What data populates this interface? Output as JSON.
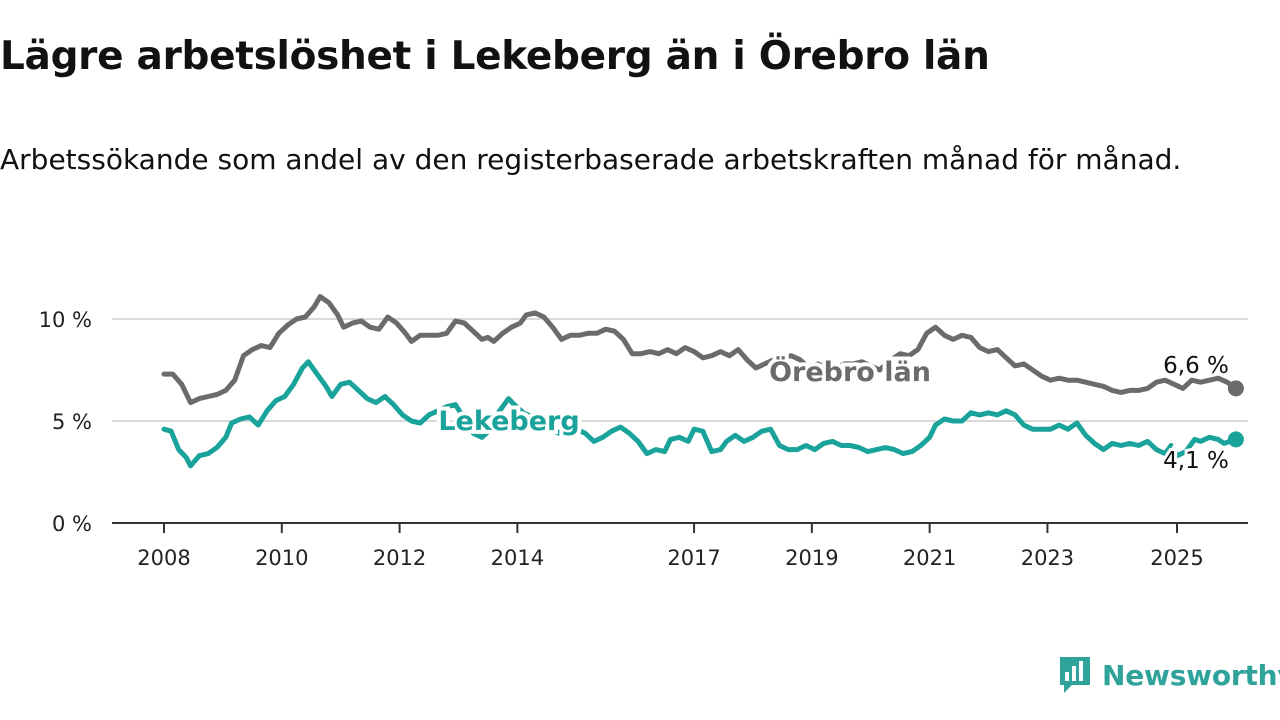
{
  "title": "Lägre arbetslöshet i Lekeberg än i Örebro län",
  "subtitle": "Arbetssökande som andel av den registerbaserade arbetskraften månad för månad.",
  "brand": {
    "name": "Newsworthy",
    "icon": "bar-chart-icon",
    "color": "#2fa39a"
  },
  "chart_data": {
    "type": "line",
    "xlabel": "",
    "ylabel": "",
    "xlim": [
      2007.6,
      2026.4
    ],
    "ylim": [
      0,
      10
    ],
    "x_ticks": [
      "2008",
      "2010",
      "2012",
      "2014",
      "2017",
      "2019",
      "2021",
      "2023",
      "2025"
    ],
    "y_ticks": [
      {
        "value": 0,
        "label": "0 %"
      },
      {
        "value": 5,
        "label": "5 %"
      },
      {
        "value": 10,
        "label": "10 %"
      }
    ],
    "grid": true,
    "series": [
      {
        "name": "Örebro län",
        "color": "#6b6b6e",
        "end_label": "6,6 %",
        "points": [
          [
            2008.0,
            7.3
          ],
          [
            2008.15,
            7.3
          ],
          [
            2008.3,
            6.8
          ],
          [
            2008.45,
            5.9
          ],
          [
            2008.6,
            6.1
          ],
          [
            2008.75,
            6.2
          ],
          [
            2008.9,
            6.3
          ],
          [
            2009.05,
            6.5
          ],
          [
            2009.2,
            7.0
          ],
          [
            2009.35,
            8.2
          ],
          [
            2009.5,
            8.5
          ],
          [
            2009.65,
            8.7
          ],
          [
            2009.8,
            8.6
          ],
          [
            2009.95,
            9.3
          ],
          [
            2010.1,
            9.7
          ],
          [
            2010.25,
            10.0
          ],
          [
            2010.4,
            10.1
          ],
          [
            2010.55,
            10.6
          ],
          [
            2010.65,
            11.1
          ],
          [
            2010.8,
            10.8
          ],
          [
            2010.95,
            10.2
          ],
          [
            2011.05,
            9.6
          ],
          [
            2011.2,
            9.8
          ],
          [
            2011.35,
            9.9
          ],
          [
            2011.5,
            9.6
          ],
          [
            2011.65,
            9.5
          ],
          [
            2011.8,
            10.1
          ],
          [
            2011.95,
            9.8
          ],
          [
            2012.1,
            9.3
          ],
          [
            2012.2,
            8.9
          ],
          [
            2012.35,
            9.2
          ],
          [
            2012.5,
            9.2
          ],
          [
            2012.65,
            9.2
          ],
          [
            2012.8,
            9.3
          ],
          [
            2012.95,
            9.9
          ],
          [
            2013.1,
            9.8
          ],
          [
            2013.25,
            9.4
          ],
          [
            2013.4,
            9.0
          ],
          [
            2013.5,
            9.1
          ],
          [
            2013.6,
            8.9
          ],
          [
            2013.75,
            9.3
          ],
          [
            2013.9,
            9.6
          ],
          [
            2014.05,
            9.8
          ],
          [
            2014.15,
            10.2
          ],
          [
            2014.3,
            10.3
          ],
          [
            2014.45,
            10.1
          ],
          [
            2014.6,
            9.6
          ],
          [
            2014.75,
            9.0
          ],
          [
            2014.9,
            9.2
          ],
          [
            2015.05,
            9.2
          ],
          [
            2015.2,
            9.3
          ],
          [
            2015.35,
            9.3
          ],
          [
            2015.5,
            9.5
          ],
          [
            2015.65,
            9.4
          ],
          [
            2015.8,
            9.0
          ],
          [
            2015.95,
            8.3
          ],
          [
            2016.1,
            8.3
          ],
          [
            2016.25,
            8.4
          ],
          [
            2016.4,
            8.3
          ],
          [
            2016.55,
            8.5
          ],
          [
            2016.7,
            8.3
          ],
          [
            2016.85,
            8.6
          ],
          [
            2017.0,
            8.4
          ],
          [
            2017.15,
            8.1
          ],
          [
            2017.3,
            8.2
          ],
          [
            2017.45,
            8.4
          ],
          [
            2017.6,
            8.2
          ],
          [
            2017.75,
            8.5
          ],
          [
            2017.9,
            8.0
          ],
          [
            2018.05,
            7.6
          ],
          [
            2018.2,
            7.8
          ],
          [
            2018.35,
            8.0
          ],
          [
            2018.5,
            8.1
          ],
          [
            2018.65,
            8.2
          ],
          [
            2018.8,
            8.0
          ],
          [
            2018.95,
            7.6
          ],
          [
            2019.1,
            7.8
          ],
          [
            2019.25,
            7.6
          ],
          [
            2019.4,
            7.6
          ],
          [
            2019.55,
            7.8
          ],
          [
            2019.7,
            7.8
          ],
          [
            2019.85,
            7.9
          ],
          [
            2020.0,
            7.7
          ],
          [
            2020.15,
            7.5
          ],
          [
            2020.3,
            7.9
          ],
          [
            2020.5,
            8.3
          ],
          [
            2020.65,
            8.2
          ],
          [
            2020.8,
            8.5
          ],
          [
            2020.95,
            9.3
          ],
          [
            2021.1,
            9.6
          ],
          [
            2021.25,
            9.2
          ],
          [
            2021.4,
            9.0
          ],
          [
            2021.55,
            9.2
          ],
          [
            2021.7,
            9.1
          ],
          [
            2021.85,
            8.6
          ],
          [
            2022.0,
            8.4
          ],
          [
            2022.15,
            8.5
          ],
          [
            2022.3,
            8.1
          ],
          [
            2022.45,
            7.7
          ],
          [
            2022.6,
            7.8
          ],
          [
            2022.75,
            7.5
          ],
          [
            2022.9,
            7.2
          ],
          [
            2023.05,
            7.0
          ],
          [
            2023.2,
            7.1
          ],
          [
            2023.35,
            7.0
          ],
          [
            2023.5,
            7.0
          ],
          [
            2023.65,
            6.9
          ],
          [
            2023.8,
            6.8
          ],
          [
            2023.95,
            6.7
          ],
          [
            2024.1,
            6.5
          ],
          [
            2024.25,
            6.4
          ],
          [
            2024.4,
            6.5
          ],
          [
            2024.55,
            6.5
          ],
          [
            2024.7,
            6.6
          ],
          [
            2024.85,
            6.9
          ],
          [
            2025.0,
            7.0
          ],
          [
            2025.15,
            6.8
          ],
          [
            2025.3,
            6.6
          ],
          [
            2025.45,
            7.0
          ],
          [
            2025.6,
            6.9
          ],
          [
            2025.75,
            7.0
          ],
          [
            2025.9,
            7.1
          ],
          [
            2026.05,
            6.9
          ],
          [
            2026.2,
            6.6
          ]
        ]
      },
      {
        "name": "Lekeberg",
        "color": "#1aa39a",
        "end_label": "4,1 %",
        "points": [
          [
            2008.0,
            4.6
          ],
          [
            2008.12,
            4.5
          ],
          [
            2008.25,
            3.6
          ],
          [
            2008.38,
            3.2
          ],
          [
            2008.45,
            2.8
          ],
          [
            2008.6,
            3.3
          ],
          [
            2008.75,
            3.4
          ],
          [
            2008.9,
            3.7
          ],
          [
            2009.05,
            4.2
          ],
          [
            2009.15,
            4.9
          ],
          [
            2009.3,
            5.1
          ],
          [
            2009.45,
            5.2
          ],
          [
            2009.6,
            4.8
          ],
          [
            2009.75,
            5.5
          ],
          [
            2009.9,
            6.0
          ],
          [
            2010.05,
            6.2
          ],
          [
            2010.2,
            6.8
          ],
          [
            2010.35,
            7.6
          ],
          [
            2010.45,
            7.9
          ],
          [
            2010.6,
            7.3
          ],
          [
            2010.75,
            6.7
          ],
          [
            2010.85,
            6.2
          ],
          [
            2011.0,
            6.8
          ],
          [
            2011.15,
            6.9
          ],
          [
            2011.3,
            6.5
          ],
          [
            2011.45,
            6.1
          ],
          [
            2011.6,
            5.9
          ],
          [
            2011.75,
            6.2
          ],
          [
            2011.9,
            5.8
          ],
          [
            2012.05,
            5.3
          ],
          [
            2012.2,
            5.0
          ],
          [
            2012.35,
            4.9
          ],
          [
            2012.5,
            5.3
          ],
          [
            2012.65,
            5.5
          ],
          [
            2012.8,
            5.7
          ],
          [
            2012.95,
            5.8
          ],
          [
            2013.1,
            5.1
          ],
          [
            2013.25,
            4.4
          ],
          [
            2013.4,
            4.2
          ],
          [
            2013.55,
            4.6
          ],
          [
            2013.65,
            5.3
          ],
          [
            2013.75,
            5.7
          ],
          [
            2013.85,
            6.1
          ],
          [
            2013.95,
            5.8
          ],
          [
            2014.1,
            5.4
          ],
          [
            2014.25,
            5.2
          ],
          [
            2014.4,
            4.8
          ],
          [
            2014.55,
            4.6
          ],
          [
            2014.7,
            4.4
          ],
          [
            2014.85,
            4.8
          ],
          [
            2015.0,
            4.6
          ],
          [
            2015.15,
            4.4
          ],
          [
            2015.3,
            4.0
          ],
          [
            2015.45,
            4.2
          ],
          [
            2015.6,
            4.5
          ],
          [
            2015.75,
            4.7
          ],
          [
            2015.9,
            4.4
          ],
          [
            2016.05,
            4.0
          ],
          [
            2016.2,
            3.4
          ],
          [
            2016.35,
            3.6
          ],
          [
            2016.5,
            3.5
          ],
          [
            2016.6,
            4.1
          ],
          [
            2016.75,
            4.2
          ],
          [
            2016.9,
            4.0
          ],
          [
            2017.0,
            4.6
          ],
          [
            2017.15,
            4.5
          ],
          [
            2017.3,
            3.5
          ],
          [
            2017.45,
            3.6
          ],
          [
            2017.55,
            4.0
          ],
          [
            2017.7,
            4.3
          ],
          [
            2017.85,
            4.0
          ],
          [
            2018.0,
            4.2
          ],
          [
            2018.15,
            4.5
          ],
          [
            2018.3,
            4.6
          ],
          [
            2018.45,
            3.8
          ],
          [
            2018.6,
            3.6
          ],
          [
            2018.75,
            3.6
          ],
          [
            2018.9,
            3.8
          ],
          [
            2019.05,
            3.6
          ],
          [
            2019.2,
            3.9
          ],
          [
            2019.35,
            4.0
          ],
          [
            2019.5,
            3.8
          ],
          [
            2019.65,
            3.8
          ],
          [
            2019.8,
            3.7
          ],
          [
            2019.95,
            3.5
          ],
          [
            2020.1,
            3.6
          ],
          [
            2020.25,
            3.7
          ],
          [
            2020.4,
            3.6
          ],
          [
            2020.55,
            3.4
          ],
          [
            2020.7,
            3.5
          ],
          [
            2020.85,
            3.8
          ],
          [
            2021.0,
            4.2
          ],
          [
            2021.1,
            4.8
          ],
          [
            2021.25,
            5.1
          ],
          [
            2021.4,
            5.0
          ],
          [
            2021.55,
            5.0
          ],
          [
            2021.7,
            5.4
          ],
          [
            2021.85,
            5.3
          ],
          [
            2022.0,
            5.4
          ],
          [
            2022.15,
            5.3
          ],
          [
            2022.3,
            5.5
          ],
          [
            2022.45,
            5.3
          ],
          [
            2022.6,
            4.8
          ],
          [
            2022.75,
            4.6
          ],
          [
            2022.9,
            4.6
          ],
          [
            2023.05,
            4.6
          ],
          [
            2023.2,
            4.8
          ],
          [
            2023.35,
            4.6
          ],
          [
            2023.5,
            4.9
          ],
          [
            2023.65,
            4.3
          ],
          [
            2023.8,
            3.9
          ],
          [
            2023.95,
            3.6
          ],
          [
            2024.1,
            3.9
          ],
          [
            2024.25,
            3.8
          ],
          [
            2024.4,
            3.9
          ],
          [
            2024.55,
            3.8
          ],
          [
            2024.7,
            4.0
          ],
          [
            2024.85,
            3.6
          ],
          [
            2025.0,
            3.4
          ],
          [
            2025.1,
            3.8
          ],
          [
            2025.2,
            3.3
          ],
          [
            2025.35,
            3.5
          ],
          [
            2025.5,
            4.1
          ],
          [
            2025.6,
            4.0
          ],
          [
            2025.75,
            4.2
          ],
          [
            2025.9,
            4.1
          ],
          [
            2026.0,
            3.9
          ],
          [
            2026.1,
            4.0
          ],
          [
            2026.2,
            4.1
          ]
        ]
      }
    ]
  }
}
